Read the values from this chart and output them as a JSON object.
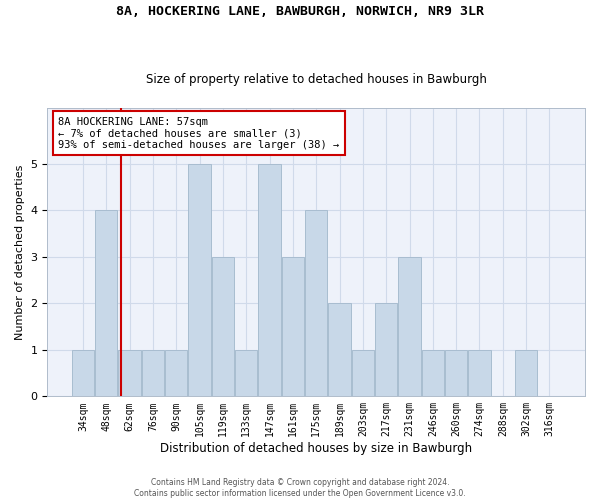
{
  "title1": "8A, HOCKERING LANE, BAWBURGH, NORWICH, NR9 3LR",
  "title2": "Size of property relative to detached houses in Bawburgh",
  "xlabel": "Distribution of detached houses by size in Bawburgh",
  "ylabel": "Number of detached properties",
  "categories": [
    "34sqm",
    "48sqm",
    "62sqm",
    "76sqm",
    "90sqm",
    "105sqm",
    "119sqm",
    "133sqm",
    "147sqm",
    "161sqm",
    "175sqm",
    "189sqm",
    "203sqm",
    "217sqm",
    "231sqm",
    "246sqm",
    "260sqm",
    "274sqm",
    "288sqm",
    "302sqm",
    "316sqm"
  ],
  "bar_values": [
    1,
    4,
    1,
    1,
    1,
    5,
    3,
    1,
    5,
    3,
    4,
    2,
    1,
    2,
    3,
    1,
    1,
    1,
    0,
    1,
    0
  ],
  "bar_color": "#c8d8e8",
  "bar_edge_color": "#a8bdd0",
  "grid_color": "#d0daea",
  "background_color": "#eef2fa",
  "annotation_text": "8A HOCKERING LANE: 57sqm\n← 7% of detached houses are smaller (3)\n93% of semi-detached houses are larger (38) →",
  "annotation_box_color": "#ffffff",
  "annotation_edge_color": "#cc0000",
  "red_line_color": "#cc0000",
  "footer1": "Contains HM Land Registry data © Crown copyright and database right 2024.",
  "footer2": "Contains public sector information licensed under the Open Government Licence v3.0.",
  "ylim": [
    0,
    6.2
  ],
  "yticks": [
    0,
    1,
    2,
    3,
    4,
    5
  ],
  "title1_fontsize": 9.5,
  "title2_fontsize": 8.5,
  "ylabel_fontsize": 8,
  "xlabel_fontsize": 8.5
}
